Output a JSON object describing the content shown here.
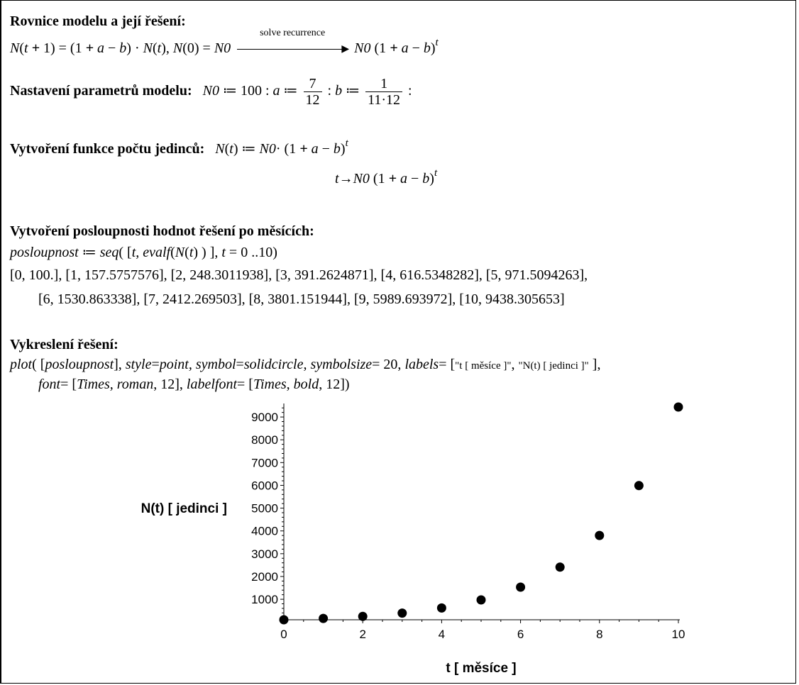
{
  "section1": {
    "heading": "Rovnice modelu a její řešení:",
    "arrow_label": "solve recurrence"
  },
  "section2": {
    "heading": "Nastavení parametrů modelu:",
    "N0_value": "100",
    "a_num": "7",
    "a_den": "12",
    "b_num": "1",
    "b_den": "11·12"
  },
  "section3": {
    "heading": "Vytvoření funkce počtu jedinců:"
  },
  "section4": {
    "heading": "Vytvoření posloupnosti hodnot řešení po měsících:",
    "output_line1": "[0, 100.], [1, 157.5757576], [2, 248.3011938], [3, 391.2624871], [4, 616.5348282], [5, 971.5094263],",
    "output_line2": "[6, 1530.863338], [7, 2412.269503], [8, 3801.151944], [9, 5989.693972], [10, 9438.305653]"
  },
  "section5": {
    "heading": "Vykreslení řešení:",
    "label_x_str": "\"t [ měsíce ]\"",
    "label_y_str": "\"N(t) [ jedinci ]\""
  },
  "chart_data": {
    "type": "scatter",
    "xlabel": "t [ měsíce ]",
    "ylabel": "N(t) [ jedinci ]",
    "x": [
      0,
      1,
      2,
      3,
      4,
      5,
      6,
      7,
      8,
      9,
      10
    ],
    "y": [
      100,
      157.5757576,
      248.3011938,
      391.2624871,
      616.5348282,
      971.5094263,
      1530.863338,
      2412.269503,
      3801.151944,
      5989.693972,
      9438.305653
    ],
    "xlim": [
      0,
      10
    ],
    "ylim": [
      100,
      9438.305653
    ],
    "xticks": [
      0,
      2,
      4,
      6,
      8,
      10
    ],
    "yticks": [
      1000,
      2000,
      3000,
      4000,
      5000,
      6000,
      7000,
      8000,
      9000
    ],
    "marker": "solid-circle",
    "marker_color": "#000000",
    "grid": false
  }
}
